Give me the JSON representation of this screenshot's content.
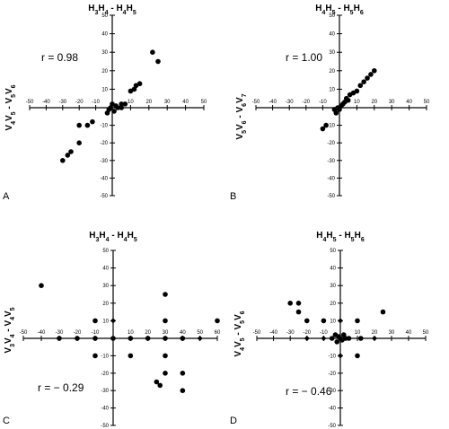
{
  "chart_data": [
    {
      "type": "scatter",
      "panel_label": "A",
      "title": "H3H4 - H4H5",
      "title_parts": [
        [
          "H",
          false
        ],
        [
          "3",
          true
        ],
        [
          "H",
          false
        ],
        [
          "4",
          true
        ],
        [
          " - H",
          false
        ],
        [
          "4",
          true
        ],
        [
          "H",
          false
        ],
        [
          "5",
          true
        ]
      ],
      "xlabel": "",
      "ylabel": "V4V5 - V5V6",
      "ylabel_parts": [
        [
          "V",
          false
        ],
        [
          "4",
          true
        ],
        [
          "V",
          false
        ],
        [
          "5",
          true
        ],
        [
          " - V",
          false
        ],
        [
          "5",
          true
        ],
        [
          "V",
          false
        ],
        [
          "6",
          true
        ]
      ],
      "annotation": "r = 0.98",
      "xlim": [
        -50,
        50
      ],
      "ylim": [
        -50,
        50
      ],
      "x_ticks": [
        "-50",
        "-40",
        "-30",
        "-20",
        "-10",
        "10",
        "20",
        "30",
        "40",
        "50"
      ],
      "y_ticks": [
        "50",
        "40",
        "30",
        "20",
        "10",
        "-10",
        "-20",
        "-30",
        "-40",
        "-50"
      ],
      "points": [
        [
          -30,
          -30
        ],
        [
          -27,
          -27
        ],
        [
          -25,
          -25
        ],
        [
          -20,
          -20
        ],
        [
          -20,
          -10
        ],
        [
          -15,
          -10
        ],
        [
          -12,
          -8
        ],
        [
          -3,
          -3
        ],
        [
          -2,
          -1
        ],
        [
          -1,
          0
        ],
        [
          0,
          2
        ],
        [
          1,
          -2
        ],
        [
          2,
          1
        ],
        [
          3,
          0
        ],
        [
          5,
          0
        ],
        [
          5,
          2
        ],
        [
          7,
          2
        ],
        [
          10,
          9
        ],
        [
          12,
          10
        ],
        [
          13,
          12
        ],
        [
          15,
          13
        ],
        [
          22,
          30
        ],
        [
          25,
          25
        ]
      ]
    },
    {
      "type": "scatter",
      "panel_label": "B",
      "title": "H4H5 - H5H6",
      "title_parts": [
        [
          "H",
          false
        ],
        [
          "4",
          true
        ],
        [
          "H",
          false
        ],
        [
          "5",
          true
        ],
        [
          " - H",
          false
        ],
        [
          "5",
          true
        ],
        [
          "H",
          false
        ],
        [
          "6",
          true
        ]
      ],
      "xlabel": "",
      "ylabel": "V5V6 - V6V7",
      "ylabel_parts": [
        [
          "V",
          false
        ],
        [
          "5",
          true
        ],
        [
          "V",
          false
        ],
        [
          "6",
          true
        ],
        [
          " - V",
          false
        ],
        [
          "6",
          true
        ],
        [
          "V",
          false
        ],
        [
          "7",
          true
        ]
      ],
      "annotation": "r = 1.00",
      "xlim": [
        -50,
        50
      ],
      "ylim": [
        -50,
        50
      ],
      "x_ticks": [
        "-50",
        "-40",
        "-30",
        "-20",
        "-10",
        "10",
        "20",
        "30",
        "40",
        "50"
      ],
      "y_ticks": [
        "50",
        "40",
        "30",
        "20",
        "10",
        "-10",
        "-20",
        "-30",
        "-40",
        "-50"
      ],
      "points": [
        [
          -10,
          -12
        ],
        [
          -8,
          -10
        ],
        [
          -3,
          -1
        ],
        [
          -2,
          -3
        ],
        [
          -1,
          0
        ],
        [
          0,
          -1
        ],
        [
          1,
          1
        ],
        [
          2,
          2
        ],
        [
          3,
          3
        ],
        [
          4,
          5
        ],
        [
          5,
          4
        ],
        [
          6,
          7
        ],
        [
          8,
          8
        ],
        [
          10,
          9
        ],
        [
          12,
          12
        ],
        [
          14,
          14
        ],
        [
          16,
          16
        ],
        [
          18,
          18
        ],
        [
          20,
          20
        ]
      ]
    },
    {
      "type": "scatter",
      "panel_label": "C",
      "title": "H3H4 - H4H5",
      "title_parts": [
        [
          "H",
          false
        ],
        [
          "3",
          true
        ],
        [
          "H",
          false
        ],
        [
          "4",
          true
        ],
        [
          " - H",
          false
        ],
        [
          "4",
          true
        ],
        [
          "H",
          false
        ],
        [
          "5",
          true
        ]
      ],
      "xlabel": "",
      "ylabel": "V3V4 - V4V5",
      "ylabel_parts": [
        [
          "V",
          false
        ],
        [
          "3",
          true
        ],
        [
          "V",
          false
        ],
        [
          "4",
          true
        ],
        [
          " - V",
          false
        ],
        [
          "4",
          true
        ],
        [
          "V",
          false
        ],
        [
          "5",
          true
        ]
      ],
      "annotation": "r = − 0.29",
      "xlim": [
        -50,
        60
      ],
      "ylim": [
        -50,
        50
      ],
      "x_ticks": [
        "-50",
        "-40",
        "-30",
        "-20",
        "-10",
        "10",
        "20",
        "30",
        "40",
        "50",
        "60"
      ],
      "y_ticks": [
        "50",
        "40",
        "30",
        "20",
        "10",
        "-10",
        "-20",
        "-30",
        "-40",
        "-50"
      ],
      "points": [
        [
          -40,
          30
        ],
        [
          -30,
          0
        ],
        [
          -20,
          0
        ],
        [
          -10,
          10
        ],
        [
          -10,
          0
        ],
        [
          -10,
          -10
        ],
        [
          0,
          0
        ],
        [
          10,
          0
        ],
        [
          10,
          -10
        ],
        [
          20,
          0
        ],
        [
          25,
          -25
        ],
        [
          27,
          -27
        ],
        [
          30,
          25
        ],
        [
          30,
          10
        ],
        [
          30,
          0
        ],
        [
          30,
          -10
        ],
        [
          30,
          -20
        ],
        [
          40,
          0
        ],
        [
          40,
          -20
        ],
        [
          40,
          -30
        ],
        [
          60,
          10
        ]
      ],
      "diamonds": [
        [
          -30,
          0
        ],
        [
          -20,
          0
        ],
        [
          0,
          10
        ],
        [
          20,
          0
        ],
        [
          50,
          0
        ]
      ]
    },
    {
      "type": "scatter",
      "panel_label": "D",
      "title": "H4H5 - H5H6",
      "title_parts": [
        [
          "H",
          false
        ],
        [
          "4",
          true
        ],
        [
          "H",
          false
        ],
        [
          "5",
          true
        ],
        [
          " - H",
          false
        ],
        [
          "5",
          true
        ],
        [
          "H",
          false
        ],
        [
          "6",
          true
        ]
      ],
      "xlabel": "",
      "ylabel": "V4V5 - V5V6",
      "ylabel_parts": [
        [
          "V",
          false
        ],
        [
          "4",
          true
        ],
        [
          "V",
          false
        ],
        [
          "5",
          true
        ],
        [
          " - V",
          false
        ],
        [
          "5",
          true
        ],
        [
          "V",
          false
        ],
        [
          "6",
          true
        ]
      ],
      "annotation": "r = − 0.46",
      "xlim": [
        -50,
        50
      ],
      "ylim": [
        -50,
        50
      ],
      "x_ticks": [
        "-50",
        "-40",
        "-30",
        "-20",
        "-10",
        "10",
        "20",
        "30",
        "40",
        "50"
      ],
      "y_ticks": [
        "50",
        "40",
        "30",
        "20",
        "10",
        "-10",
        "-20",
        "-30",
        "-40",
        "-50"
      ],
      "points": [
        [
          -30,
          20
        ],
        [
          -25,
          20
        ],
        [
          -25,
          15
        ],
        [
          -20,
          10
        ],
        [
          -10,
          10
        ],
        [
          -5,
          0
        ],
        [
          -3,
          2
        ],
        [
          -2,
          -2
        ],
        [
          -1,
          1
        ],
        [
          0,
          0
        ],
        [
          1,
          -1
        ],
        [
          2,
          2
        ],
        [
          3,
          0
        ],
        [
          5,
          0
        ],
        [
          10,
          10
        ],
        [
          10,
          -10
        ],
        [
          12,
          0
        ],
        [
          25,
          15
        ]
      ],
      "diamonds": [
        [
          -20,
          0
        ],
        [
          -10,
          0
        ],
        [
          0,
          10
        ],
        [
          0,
          -10
        ],
        [
          20,
          0
        ]
      ]
    }
  ]
}
